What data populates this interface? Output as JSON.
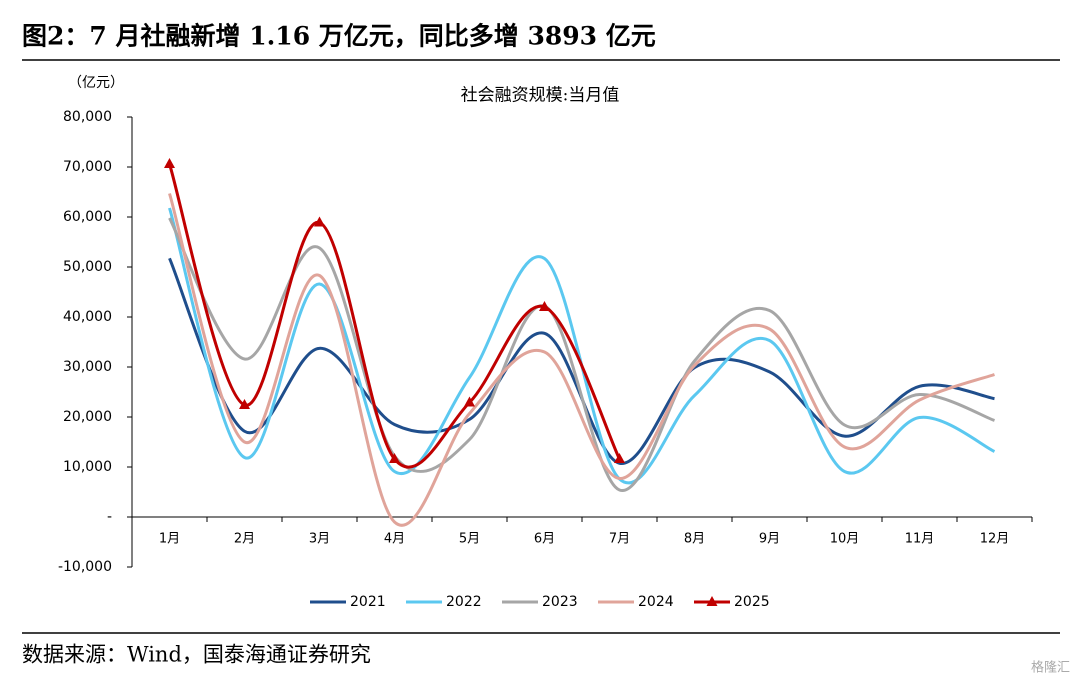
{
  "header": {
    "title": "图2：7 月社融新增 1.16 万亿元，同比多增 3893 亿元"
  },
  "chart_data": {
    "type": "line",
    "title": "社会融资规模:当月值",
    "y_unit": "（亿元）",
    "categories": [
      "1月",
      "2月",
      "3月",
      "4月",
      "5月",
      "6月",
      "7月",
      "8月",
      "9月",
      "10月",
      "11月",
      "12月"
    ],
    "series": [
      {
        "name": "2021",
        "color": "#1f4e8c",
        "values": [
          51742,
          17152,
          33736,
          18502,
          19522,
          36736,
          10752,
          29893,
          29026,
          16176,
          26146,
          23682
        ]
      },
      {
        "name": "2022",
        "color": "#5bc8f0",
        "values": [
          61800,
          11900,
          46600,
          9100,
          27900,
          51700,
          7600,
          24300,
          35300,
          9100,
          19900,
          13100
        ]
      },
      {
        "name": "2023",
        "color": "#a6a6a6",
        "values": [
          59800,
          31600,
          53800,
          12200,
          15500,
          42200,
          5400,
          31200,
          41300,
          18400,
          24500,
          19300
        ]
      },
      {
        "name": "2024",
        "color": "#e0a49a",
        "values": [
          64700,
          15000,
          48300,
          -1000,
          20700,
          33000,
          7700,
          30300,
          37600,
          14000,
          23400,
          28500
        ]
      },
      {
        "name": "2025",
        "color": "#c00000",
        "marker": "triangle",
        "values": [
          70600,
          22400,
          58900,
          11600,
          22900,
          42000,
          11593,
          null,
          null,
          null,
          null,
          null
        ]
      }
    ],
    "ylim": [
      -10000,
      80000
    ],
    "yticks": [
      {
        "value": -10000,
        "label": "-10,000"
      },
      {
        "value": 0,
        "label": "-"
      },
      {
        "value": 10000,
        "label": "10,000"
      },
      {
        "value": 20000,
        "label": "20,000"
      },
      {
        "value": 30000,
        "label": "30,000"
      },
      {
        "value": 40000,
        "label": "40,000"
      },
      {
        "value": 50000,
        "label": "50,000"
      },
      {
        "value": 60000,
        "label": "60,000"
      },
      {
        "value": 70000,
        "label": "70,000"
      },
      {
        "value": 80000,
        "label": "80,000"
      }
    ],
    "legend": "bottom"
  },
  "footer": {
    "source": "数据来源：Wind，国泰海通证券研究",
    "watermark": "格隆汇"
  }
}
